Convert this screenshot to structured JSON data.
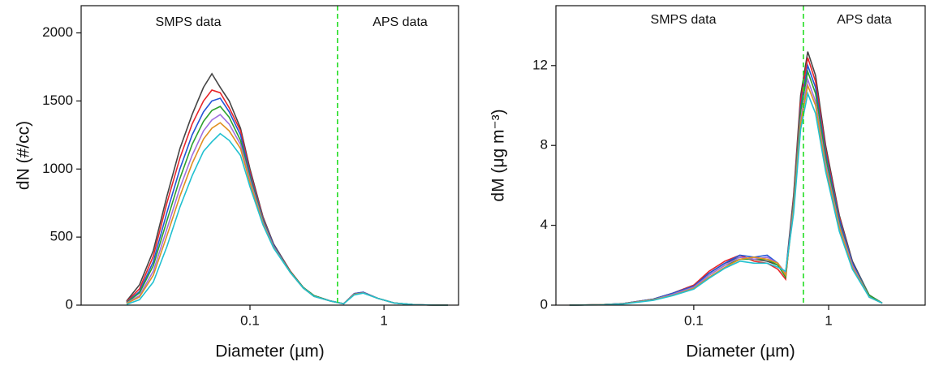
{
  "chart_data": [
    {
      "type": "line",
      "xlabel": "Diameter (µm)",
      "ylabel": "dN (#/cc)",
      "xscale": "log",
      "xlim": [
        0.0055,
        3.6
      ],
      "ylim": [
        0,
        2200
      ],
      "xticks": [
        0.1,
        1
      ],
      "yticks": [
        0,
        500,
        1000,
        1500,
        2000
      ],
      "vline": 0.45,
      "vline_color": "#22dd22",
      "annotations": [
        "SMPS data",
        "APS data"
      ],
      "x": [
        0.012,
        0.015,
        0.019,
        0.024,
        0.03,
        0.037,
        0.045,
        0.052,
        0.06,
        0.07,
        0.085,
        0.1,
        0.125,
        0.15,
        0.2,
        0.25,
        0.3,
        0.4,
        0.5,
        0.6,
        0.7,
        0.9,
        1.2,
        1.7,
        2.5,
        3.0
      ],
      "series": [
        {
          "color": "#454545",
          "values": [
            30,
            150,
            400,
            800,
            1150,
            1400,
            1600,
            1700,
            1600,
            1500,
            1300,
            1000,
            650,
            450,
            250,
            130,
            70,
            30,
            10,
            80,
            90,
            50,
            15,
            3,
            0,
            0
          ]
        },
        {
          "color": "#e8262a",
          "values": [
            25,
            120,
            360,
            750,
            1080,
            1330,
            1500,
            1580,
            1560,
            1450,
            1280,
            980,
            640,
            440,
            250,
            130,
            70,
            30,
            10,
            85,
            95,
            50,
            15,
            3,
            0,
            0
          ]
        },
        {
          "color": "#2255d6",
          "values": [
            20,
            100,
            320,
            680,
            1000,
            1250,
            1420,
            1500,
            1520,
            1420,
            1250,
            960,
            630,
            440,
            245,
            130,
            70,
            30,
            10,
            85,
            95,
            50,
            15,
            3,
            0,
            0
          ]
        },
        {
          "color": "#2ca02c",
          "values": [
            18,
            90,
            290,
            620,
            930,
            1180,
            1350,
            1430,
            1460,
            1380,
            1210,
            940,
            620,
            430,
            245,
            130,
            70,
            30,
            10,
            80,
            90,
            50,
            15,
            3,
            0,
            0
          ]
        },
        {
          "color": "#a070e0",
          "values": [
            15,
            70,
            250,
            560,
            860,
            1100,
            1280,
            1360,
            1400,
            1330,
            1180,
            920,
            610,
            430,
            240,
            125,
            65,
            30,
            10,
            80,
            90,
            50,
            15,
            3,
            0,
            0
          ]
        },
        {
          "color": "#e09020",
          "values": [
            12,
            60,
            220,
            510,
            800,
            1040,
            1220,
            1300,
            1340,
            1280,
            1150,
            900,
            600,
            425,
            240,
            125,
            65,
            30,
            10,
            80,
            90,
            50,
            15,
            3,
            0,
            0
          ]
        },
        {
          "color": "#20c0d0",
          "values": [
            5,
            40,
            170,
            430,
            720,
            950,
            1130,
            1200,
            1260,
            1210,
            1100,
            870,
            590,
            420,
            240,
            125,
            65,
            30,
            10,
            75,
            88,
            50,
            15,
            3,
            0,
            0
          ]
        }
      ]
    },
    {
      "type": "line",
      "xlabel": "Diameter (µm)",
      "ylabel": "dM (μg m⁻³)",
      "xscale": "log",
      "xlim": [
        0.0095,
        5.2
      ],
      "ylim": [
        0,
        15
      ],
      "xticks": [
        0.1,
        1
      ],
      "yticks": [
        0,
        4,
        8,
        12
      ],
      "vline": 0.65,
      "vline_color": "#22dd22",
      "annotations": [
        "SMPS data",
        "APS data"
      ],
      "x": [
        0.012,
        0.02,
        0.03,
        0.05,
        0.07,
        0.1,
        0.13,
        0.17,
        0.22,
        0.28,
        0.35,
        0.42,
        0.48,
        0.55,
        0.62,
        0.7,
        0.8,
        0.95,
        1.2,
        1.5,
        2.0,
        2.5
      ],
      "series": [
        {
          "color": "#454545",
          "values": [
            0,
            0.02,
            0.08,
            0.3,
            0.6,
            1.0,
            1.6,
            2.1,
            2.4,
            2.3,
            2.2,
            2.0,
            1.6,
            5.5,
            10.5,
            12.7,
            11.5,
            8.0,
            4.5,
            2.2,
            0.5,
            0.1
          ]
        },
        {
          "color": "#e8262a",
          "values": [
            0,
            0.02,
            0.08,
            0.3,
            0.6,
            1.0,
            1.7,
            2.2,
            2.5,
            2.2,
            2.1,
            1.8,
            1.3,
            5.4,
            10.2,
            12.4,
            11.2,
            7.8,
            4.4,
            2.1,
            0.5,
            0.1
          ]
        },
        {
          "color": "#2255d6",
          "values": [
            0,
            0.02,
            0.08,
            0.3,
            0.6,
            0.95,
            1.6,
            2.1,
            2.5,
            2.4,
            2.5,
            2.1,
            1.5,
            5.2,
            9.9,
            12.0,
            10.9,
            7.6,
            4.3,
            2.1,
            0.5,
            0.1
          ]
        },
        {
          "color": "#2ca02c",
          "values": [
            0,
            0.02,
            0.07,
            0.28,
            0.55,
            0.9,
            1.5,
            2.0,
            2.3,
            2.3,
            2.3,
            2.0,
            1.4,
            5.1,
            9.7,
            11.7,
            10.6,
            7.4,
            4.1,
            2.0,
            0.5,
            0.1
          ]
        },
        {
          "color": "#a070e0",
          "values": [
            0,
            0.02,
            0.07,
            0.27,
            0.55,
            0.9,
            1.5,
            2.0,
            2.4,
            2.3,
            2.4,
            2.1,
            1.6,
            4.9,
            9.3,
            11.3,
            10.2,
            7.1,
            4.0,
            2.0,
            0.4,
            0.1
          ]
        },
        {
          "color": "#e09020",
          "values": [
            0,
            0.02,
            0.07,
            0.26,
            0.5,
            0.85,
            1.4,
            1.9,
            2.3,
            2.4,
            2.3,
            2.1,
            1.5,
            4.8,
            9.1,
            11.0,
            10.0,
            6.9,
            3.9,
            1.9,
            0.4,
            0.1
          ]
        },
        {
          "color": "#20c0d0",
          "values": [
            0,
            0.01,
            0.06,
            0.24,
            0.48,
            0.8,
            1.35,
            1.85,
            2.2,
            2.1,
            2.1,
            1.9,
            1.7,
            4.6,
            8.8,
            10.6,
            9.6,
            6.7,
            3.7,
            1.8,
            0.4,
            0.1
          ]
        }
      ]
    }
  ]
}
